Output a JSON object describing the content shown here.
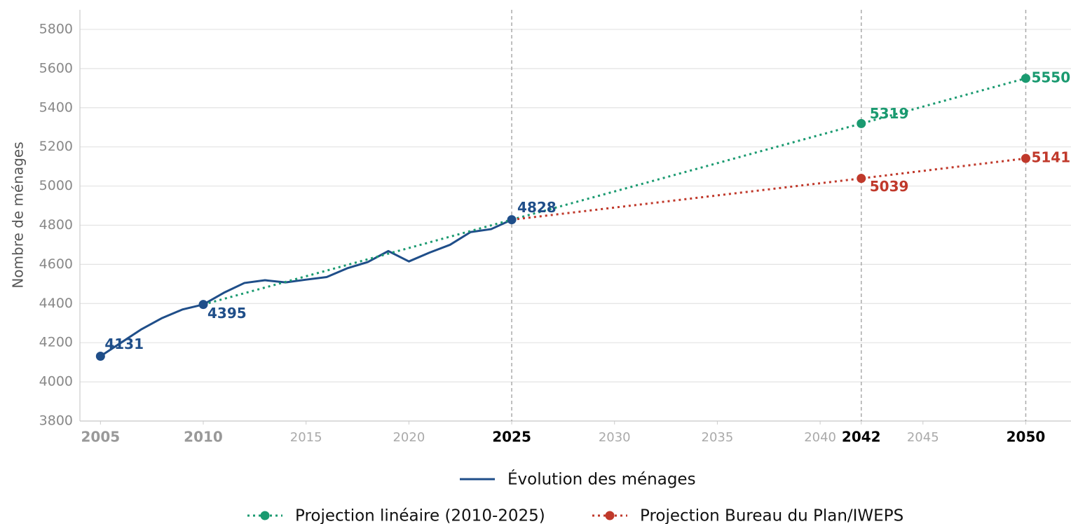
{
  "chart_data": {
    "type": "line",
    "y_label": "Nombre de ménages",
    "xlim": [
      2004,
      2052.2
    ],
    "ylim": [
      3800,
      5900
    ],
    "xticks": [
      2005,
      2010,
      2015,
      2020,
      2025,
      2030,
      2035,
      2040,
      2042,
      2045,
      2050
    ],
    "yticks": [
      3800,
      4000,
      4200,
      4400,
      4600,
      4800,
      5000,
      5200,
      5400,
      5600,
      5800
    ],
    "grid": true,
    "vlines": [
      2025,
      2042,
      2050
    ],
    "series": [
      {
        "name": "Évolution des ménages",
        "color": "#1f4e89",
        "style": "solid",
        "x": [
          2005,
          2006,
          2007,
          2008,
          2009,
          2010,
          2011,
          2012,
          2013,
          2014,
          2015,
          2016,
          2017,
          2018,
          2019,
          2020,
          2021,
          2022,
          2023,
          2024,
          2025
        ],
        "values": [
          4131,
          4200,
          4269,
          4326,
          4370,
          4395,
          4455,
          4505,
          4519,
          4508,
          4522,
          4535,
          4580,
          4612,
          4668,
          4615,
          4660,
          4700,
          4765,
          4780,
          4828
        ]
      },
      {
        "name": "Projection linéaire (2010-2025)",
        "color": "#1a9a70",
        "style": "dotted",
        "x": [
          2010,
          2025,
          2042,
          2050
        ],
        "values": [
          4395,
          4828,
          5319,
          5550
        ]
      },
      {
        "name": "Projection Bureau du Plan/IWEPS",
        "color": "#c0392b",
        "style": "dotted",
        "x": [
          2025,
          2042,
          2050
        ],
        "values": [
          4828,
          5039,
          5141
        ]
      }
    ],
    "annotations": [
      {
        "x": 2005,
        "value": 4131,
        "color": "#1f4e89"
      },
      {
        "x": 2010,
        "value": 4395,
        "color": "#1f4e89"
      },
      {
        "x": 2025,
        "value": 4828,
        "color": "#1f4e89"
      },
      {
        "x": 2042,
        "value": 5319,
        "color": "#1a9a70"
      },
      {
        "x": 2050,
        "value": 5550,
        "color": "#1a9a70"
      },
      {
        "x": 2042,
        "value": 5039,
        "color": "#c0392b"
      },
      {
        "x": 2050,
        "value": 5141,
        "color": "#c0392b"
      }
    ]
  }
}
